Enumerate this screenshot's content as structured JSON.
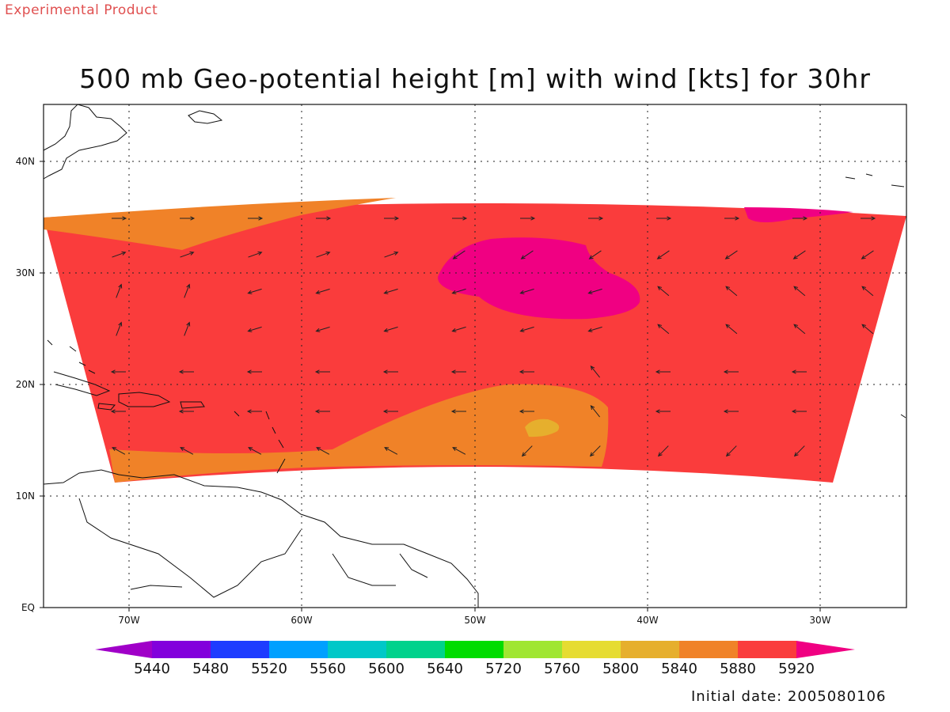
{
  "header": {
    "product_tag": "Experimental Product",
    "title": "500 mb Geo-potential height [m] with wind [kts] for 30hr",
    "initial_date": "Initial date: 2005080106"
  },
  "axes": {
    "lat_labels": [
      "EQ",
      "10N",
      "20N",
      "30N",
      "40N"
    ],
    "lon_labels": [
      "70W",
      "60W",
      "50W",
      "40W",
      "30W"
    ]
  },
  "colorbar": {
    "labels": [
      "5440",
      "5480",
      "5520",
      "5560",
      "5600",
      "5640",
      "5720",
      "5760",
      "5800",
      "5840",
      "5880",
      "5920"
    ],
    "colors": [
      "#a000c8",
      "#8200dc",
      "#1e3cff",
      "#00a0ff",
      "#00c8c8",
      "#00d28c",
      "#00dc00",
      "#a0e632",
      "#e6dc32",
      "#e6af2d",
      "#f08228",
      "#fa3c3c",
      "#f00082"
    ]
  },
  "field_colors": {
    "c5840": "#e6af2d",
    "c5880": "#f08228",
    "c5920": "#fa3c3c",
    "c5960": "#f00082"
  }
}
